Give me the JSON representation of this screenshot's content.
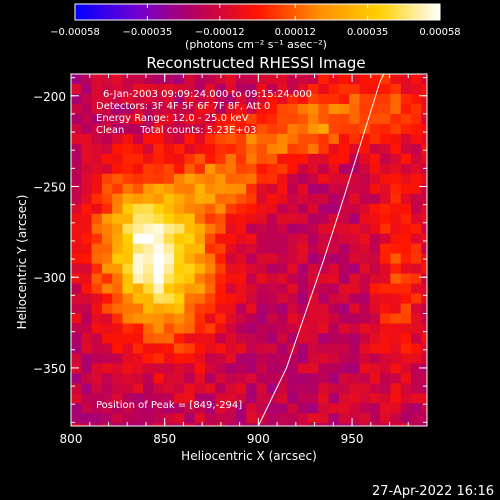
{
  "chart_data": {
    "type": "heatmap",
    "title": "Reconstructed RHESSI Image",
    "xlabel": "Heliocentric X (arcsec)",
    "ylabel": "Heliocentric Y (arcsec)",
    "xlim": [
      800,
      990
    ],
    "ylim": [
      -382,
      -188
    ],
    "xticks": [
      800,
      850,
      900,
      950
    ],
    "yticks": [
      -200,
      -250,
      -300,
      -350
    ],
    "xtick_labels": [
      "800",
      "850",
      "900",
      "950"
    ],
    "ytick_labels": [
      "−200",
      "−250",
      "−300",
      "−350"
    ],
    "colorbar": {
      "range": [
        -0.00058,
        0.00058
      ],
      "ticks": [
        -0.00058,
        -0.00035,
        -0.00012,
        0.00012,
        0.00035,
        0.00058
      ],
      "tick_labels": [
        "−0.00058",
        "−0.00035",
        "−0.00012",
        "0.00012",
        "0.00035",
        "0.00058"
      ],
      "unit_label": "(photons cm⁻² s⁻¹ asec⁻²)",
      "colors": [
        "#0000ff",
        "#6e00d4",
        "#b8005a",
        "#ff1400",
        "#ff8c00",
        "#ffd000",
        "#ffffff"
      ]
    },
    "annotations": [
      "6-Jan-2003 09:09:24.000 to 09:15:24.000",
      "Detectors: 3F 4F 5F 6F 7F 8F, Att 0",
      "Energy Range: 12.0 - 25.0 keV",
      "Clean     Total counts: 5.23E+03",
      "Position of Peak = [849,-294]"
    ],
    "peak": [
      849,
      -294
    ],
    "limb_curve": [
      [
        900,
        -382
      ],
      [
        915,
        -350
      ],
      [
        925,
        -320
      ],
      [
        935,
        -290
      ],
      [
        945,
        -258
      ],
      [
        955,
        -225
      ],
      [
        965,
        -192
      ],
      [
        967,
        -188
      ]
    ],
    "sources": [
      {
        "x": 850,
        "y": -294,
        "sigma_x": 20,
        "sigma_y": 30,
        "amplitude": 0.00055
      },
      {
        "x": 835,
        "y": -275,
        "sigma_x": 18,
        "sigma_y": 25,
        "amplitude": 0.0003
      },
      {
        "x": 880,
        "y": -250,
        "sigma_x": 16,
        "sigma_y": 12,
        "amplitude": 0.0003
      },
      {
        "x": 905,
        "y": -225,
        "sigma_x": 20,
        "sigma_y": 12,
        "amplitude": 0.00028
      },
      {
        "x": 960,
        "y": -205,
        "sigma_x": 22,
        "sigma_y": 16,
        "amplitude": 0.00025
      },
      {
        "x": 975,
        "y": -300,
        "sigma_x": 10,
        "sigma_y": 40,
        "amplitude": 0.0002
      },
      {
        "x": 930,
        "y": -215,
        "sigma_x": 12,
        "sigma_y": 10,
        "amplitude": 0.0002
      }
    ],
    "background_level": -0.00016
  },
  "footer": {
    "date": "27-Apr-2022 16:16"
  }
}
